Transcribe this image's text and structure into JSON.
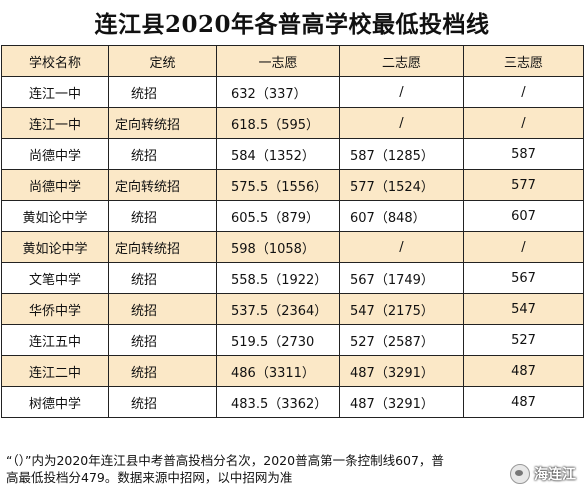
{
  "title": "连江县2020年各普高学校最低投档线",
  "headers": [
    "学校名称",
    "定统",
    "一志愿",
    "二志愿",
    "三志愿"
  ],
  "rows": [
    [
      "连江一中",
      "统招",
      "632（337）",
      "/",
      "/"
    ],
    [
      "连江一中",
      "定向转统招",
      "618.5（595）",
      "/",
      "/"
    ],
    [
      "尚德中学",
      "统招",
      "584（1352）",
      "587（1285）",
      "587"
    ],
    [
      "尚德中学",
      "定向转统招",
      "575.5（1556）",
      "577（1524）",
      "577"
    ],
    [
      "黄如论中学",
      "统招",
      "605.5（879）",
      "607（848）",
      "607"
    ],
    [
      "黄如论中学",
      "定向转统招",
      "598（1058）",
      "/",
      "/"
    ],
    [
      "文笔中学",
      "统招",
      "558.5（1922）",
      "567（1749）",
      "567"
    ],
    [
      "华侨中学",
      "统招",
      "537.5（2364）",
      "547（2175）",
      "547"
    ],
    [
      "连江五中",
      "统招",
      "519.5（2730",
      "527（2587）",
      "527"
    ],
    [
      "连江二中",
      "统招",
      "486（3311）",
      "487（3291）",
      "487"
    ],
    [
      "树德中学",
      "统招",
      "483.5（3362）",
      "487（3291）",
      "487"
    ]
  ],
  "footer": {
    "line1": "“（）”内为2020年连江县中考普高投档分名次，2020普高第一条控制线607，普",
    "line2": "高最低投档分479。数据来源中招网，以中招网为准"
  },
  "watermark": {
    "text": "海连江",
    "icon": "wechat-account-icon"
  }
}
